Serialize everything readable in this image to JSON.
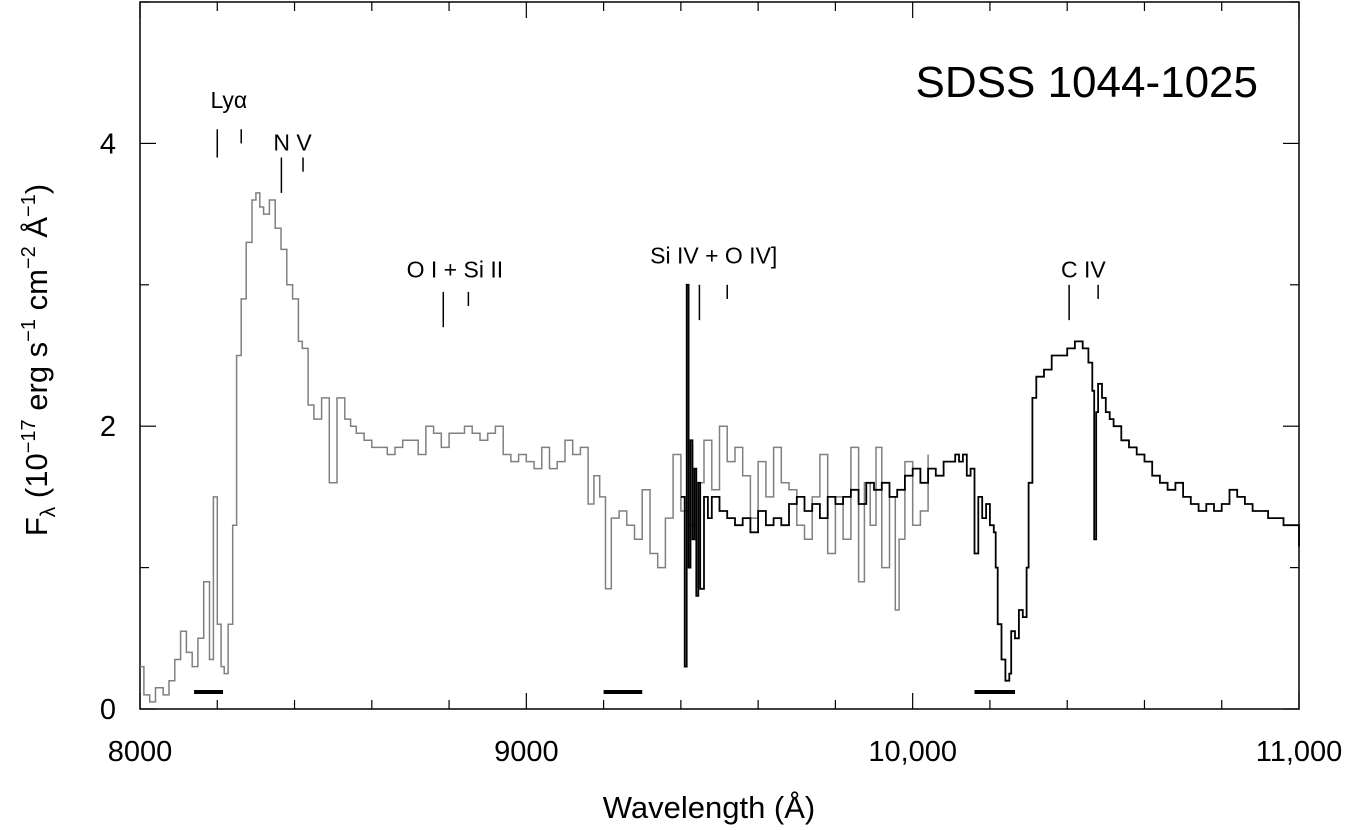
{
  "chart_data": {
    "type": "line",
    "title": "SDSS 1044-1025",
    "xlabel": "Wavelength (Å)",
    "ylabel": {
      "base": "F",
      "sub": "λ",
      "mid1": " (10",
      "exp1": "−17",
      "mid2": " erg s",
      "exp2": "−1",
      "mid3": " cm",
      "exp3": "−2",
      "mid4": " Å",
      "exp4": "−1",
      "end": ")"
    },
    "xlim": [
      8000,
      11000
    ],
    "ylim": [
      0,
      5
    ],
    "x_ticks": [
      {
        "value": 8000,
        "label": "8000"
      },
      {
        "value": 9000,
        "label": "9000"
      },
      {
        "value": 10000,
        "label": "10,000"
      },
      {
        "value": 11000,
        "label": "11,000"
      }
    ],
    "x_minor_step": 200,
    "y_ticks": [
      {
        "value": 0,
        "label": "0"
      },
      {
        "value": 2,
        "label": "2"
      },
      {
        "value": 4,
        "label": "4"
      }
    ],
    "y_minor_step": 1,
    "grid": false,
    "series": [
      {
        "color": "#808080",
        "x": [
          8000,
          8010,
          8025,
          8040,
          8060,
          8075,
          8090,
          8105,
          8120,
          8135,
          8150,
          8165,
          8180,
          8190,
          8200,
          8210,
          8218,
          8228,
          8240,
          8250,
          8262,
          8275,
          8290,
          8300,
          8310,
          8320,
          8335,
          8350,
          8365,
          8380,
          8395,
          8410,
          8420,
          8435,
          8450,
          8470,
          8490,
          8510,
          8530,
          8545,
          8560,
          8580,
          8600,
          8620,
          8640,
          8660,
          8680,
          8700,
          8720,
          8740,
          8760,
          8780,
          8800,
          8820,
          8840,
          8860,
          8880,
          8900,
          8920,
          8940,
          8960,
          8980,
          9000,
          9020,
          9040,
          9060,
          9080,
          9100,
          9120,
          9140,
          9160,
          9175,
          9190,
          9205,
          9220,
          9240,
          9260,
          9280,
          9300,
          9320,
          9340,
          9360,
          9380,
          9400,
          9420,
          9440,
          9460,
          9480,
          9500,
          9520,
          9540,
          9560,
          9580,
          9600,
          9620,
          9640,
          9660,
          9680,
          9700,
          9720,
          9740,
          9760,
          9780,
          9800,
          9820,
          9840,
          9860,
          9875,
          9890,
          9905,
          9920,
          9940,
          9955,
          9965,
          9980,
          10000,
          10020,
          10040
        ],
        "y": [
          0.3,
          0.1,
          0.05,
          0.15,
          0.1,
          0.2,
          0.35,
          0.55,
          0.4,
          0.3,
          0.5,
          0.9,
          0.35,
          1.5,
          0.6,
          0.3,
          0.25,
          0.6,
          1.3,
          2.5,
          2.9,
          3.3,
          3.6,
          3.65,
          3.55,
          3.5,
          3.6,
          3.4,
          3.25,
          3.0,
          2.9,
          2.6,
          2.55,
          2.15,
          2.05,
          2.2,
          1.6,
          2.2,
          2.05,
          2.0,
          1.95,
          1.9,
          1.85,
          1.85,
          1.8,
          1.85,
          1.9,
          1.9,
          1.8,
          2.0,
          1.95,
          1.85,
          1.95,
          1.95,
          2.0,
          1.95,
          1.9,
          1.95,
          2.0,
          1.8,
          1.75,
          1.8,
          1.75,
          1.7,
          1.85,
          1.7,
          1.75,
          1.9,
          1.8,
          1.85,
          1.45,
          1.65,
          1.5,
          0.85,
          1.35,
          1.4,
          1.3,
          1.2,
          1.55,
          1.1,
          1.0,
          1.35,
          1.8,
          1.4,
          1.3,
          1.6,
          1.9,
          1.55,
          2.0,
          1.75,
          1.85,
          1.65,
          1.35,
          1.75,
          1.5,
          1.85,
          1.6,
          1.55,
          1.3,
          1.2,
          1.5,
          1.8,
          1.1,
          1.5,
          1.2,
          1.85,
          0.9,
          1.6,
          1.3,
          1.85,
          1.0,
          1.5,
          0.7,
          1.2,
          1.75,
          1.3,
          1.4,
          1.8
        ]
      },
      {
        "color": "#000000",
        "x": [
          9400,
          9410,
          9415,
          9420,
          9425,
          9430,
          9435,
          9440,
          9445,
          9450,
          9460,
          9470,
          9480,
          9500,
          9520,
          9540,
          9560,
          9580,
          9600,
          9620,
          9640,
          9660,
          9680,
          9700,
          9720,
          9740,
          9760,
          9780,
          9800,
          9820,
          9840,
          9860,
          9880,
          9900,
          9920,
          9940,
          9960,
          9980,
          10000,
          10020,
          10040,
          10060,
          10080,
          10100,
          10110,
          10120,
          10130,
          10140,
          10150,
          10160,
          10170,
          10180,
          10190,
          10200,
          10210,
          10215,
          10220,
          10230,
          10240,
          10250,
          10255,
          10265,
          10275,
          10285,
          10295,
          10300,
          10310,
          10320,
          10340,
          10360,
          10380,
          10400,
          10420,
          10440,
          10455,
          10465,
          10470,
          10475,
          10480,
          10490,
          10500,
          10510,
          10520,
          10540,
          10560,
          10580,
          10600,
          10620,
          10640,
          10660,
          10680,
          10700,
          10720,
          10740,
          10760,
          10780,
          10800,
          10820,
          10840,
          10860,
          10880,
          10900,
          10920,
          10940,
          10960,
          10980,
          11000
        ],
        "y": [
          1.5,
          0.3,
          3.0,
          1.0,
          1.9,
          1.2,
          1.7,
          0.8,
          1.6,
          0.85,
          1.5,
          1.35,
          1.5,
          1.4,
          1.35,
          1.3,
          1.35,
          1.25,
          1.4,
          1.3,
          1.35,
          1.3,
          1.45,
          1.5,
          1.4,
          1.45,
          1.35,
          1.5,
          1.45,
          1.5,
          1.55,
          1.45,
          1.6,
          1.55,
          1.6,
          1.5,
          1.55,
          1.65,
          1.7,
          1.6,
          1.7,
          1.65,
          1.75,
          1.75,
          1.8,
          1.75,
          1.8,
          1.65,
          1.7,
          1.1,
          1.5,
          1.35,
          1.45,
          1.3,
          1.25,
          1.0,
          0.6,
          0.35,
          0.2,
          0.25,
          0.55,
          0.5,
          0.7,
          0.65,
          1.0,
          1.6,
          2.2,
          2.35,
          2.4,
          2.5,
          2.5,
          2.55,
          2.6,
          2.55,
          2.45,
          2.25,
          1.2,
          2.1,
          2.3,
          2.2,
          2.1,
          2.05,
          2.0,
          1.9,
          1.85,
          1.8,
          1.75,
          1.65,
          1.6,
          1.55,
          1.6,
          1.5,
          1.45,
          1.4,
          1.45,
          1.4,
          1.45,
          1.55,
          1.5,
          1.45,
          1.4,
          1.4,
          1.35,
          1.35,
          1.3,
          1.3,
          1.15
        ]
      }
    ],
    "line_markers": [
      {
        "id": "lya",
        "label": "Lyα",
        "ticks": [
          {
            "x": 8200,
            "y0": 3.9,
            "y1": 4.1
          },
          {
            "x": 8262,
            "y0": 4.0,
            "y1": 4.1
          }
        ],
        "label_x": 8230,
        "label_y": 4.25
      },
      {
        "id": "nv",
        "label": "N V",
        "ticks": [
          {
            "x": 8366,
            "y0": 3.65,
            "y1": 3.9
          },
          {
            "x": 8422,
            "y0": 3.8,
            "y1": 3.9
          }
        ],
        "label_x": 8395,
        "label_y": 3.95
      },
      {
        "id": "oi-siii",
        "label": "O I + Si II",
        "ticks": [
          {
            "x": 8785,
            "y0": 2.7,
            "y1": 2.95
          },
          {
            "x": 8850,
            "y0": 2.85,
            "y1": 2.95
          }
        ],
        "label_x": 8815,
        "label_y": 3.05
      },
      {
        "id": "siiv-oiv",
        "label": "Si IV + O IV]",
        "ticks": [
          {
            "x": 9448,
            "y0": 2.75,
            "y1": 3.0
          },
          {
            "x": 9520,
            "y0": 2.9,
            "y1": 3.0
          }
        ],
        "label_x": 9485,
        "label_y": 3.15
      },
      {
        "id": "civ",
        "label": "C IV",
        "ticks": [
          {
            "x": 10405,
            "y0": 2.75,
            "y1": 3.0
          },
          {
            "x": 10480,
            "y0": 2.9,
            "y1": 3.0
          }
        ],
        "label_x": 10442,
        "label_y": 3.05
      }
    ],
    "bands": [
      {
        "x0": 8140,
        "x1": 8215,
        "y": 0.12
      },
      {
        "x0": 9200,
        "x1": 9300,
        "y": 0.12
      },
      {
        "x0": 10160,
        "x1": 10265,
        "y": 0.12
      }
    ],
    "title_position": "top-right"
  }
}
